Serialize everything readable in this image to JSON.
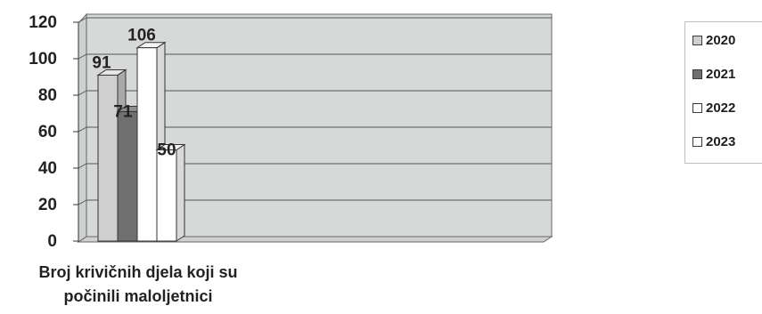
{
  "chart_data": {
    "type": "bar",
    "categories": [
      "Broj krivičnih djela koji su počinili maloljetnici"
    ],
    "category_lines": [
      "Broj krivičnih djela koji su",
      "počinili maloljetnici"
    ],
    "series": [
      {
        "name": "2020",
        "values": [
          91
        ],
        "color": "#cfcfcf"
      },
      {
        "name": "2021",
        "values": [
          71
        ],
        "color": "#6f6f6f"
      },
      {
        "name": "2022",
        "values": [
          106
        ],
        "color": "#ffffff"
      },
      {
        "name": "2023",
        "values": [
          50
        ],
        "color": "#ffffff"
      }
    ],
    "y_ticks": [
      "0",
      "20",
      "40",
      "60",
      "80",
      "100",
      "120"
    ],
    "ylim": [
      0,
      120
    ],
    "grid": true,
    "legend_position": "right",
    "data_labels": true
  }
}
